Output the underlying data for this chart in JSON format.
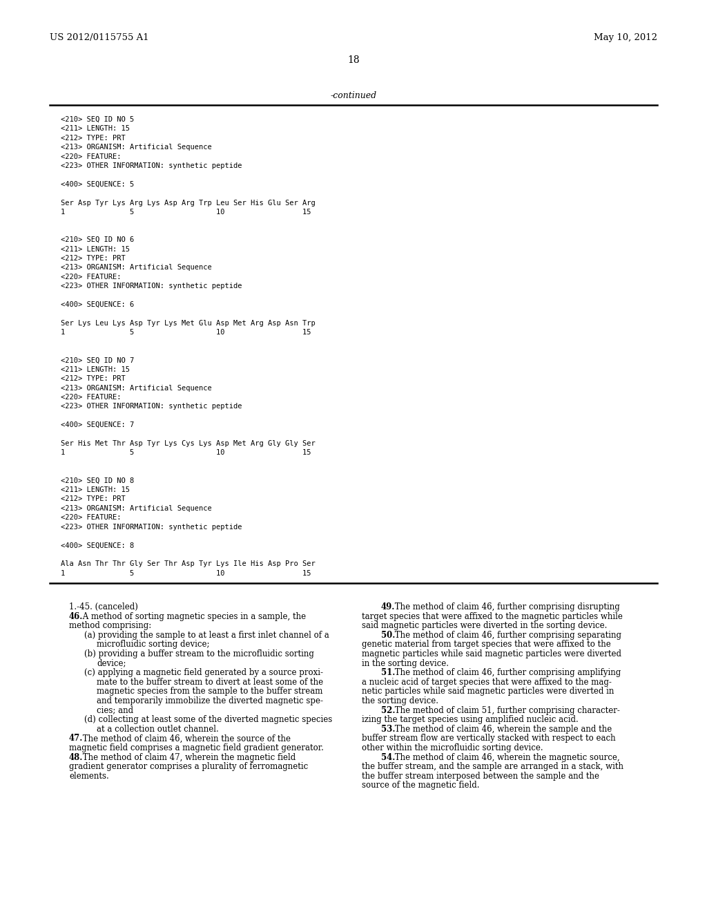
{
  "background_color": "#ffffff",
  "page_header_left": "US 2012/0115755 A1",
  "page_header_right": "May 10, 2012",
  "page_number": "18",
  "continued_label": "-continued",
  "monospace_lines": [
    "<210> SEQ ID NO 5",
    "<211> LENGTH: 15",
    "<212> TYPE: PRT",
    "<213> ORGANISM: Artificial Sequence",
    "<220> FEATURE:",
    "<223> OTHER INFORMATION: synthetic peptide",
    "",
    "<400> SEQUENCE: 5",
    "",
    "Ser Asp Tyr Lys Arg Lys Asp Arg Trp Leu Ser His Glu Ser Arg",
    "1               5                   10                  15",
    "",
    "",
    "<210> SEQ ID NO 6",
    "<211> LENGTH: 15",
    "<212> TYPE: PRT",
    "<213> ORGANISM: Artificial Sequence",
    "<220> FEATURE:",
    "<223> OTHER INFORMATION: synthetic peptide",
    "",
    "<400> SEQUENCE: 6",
    "",
    "Ser Lys Leu Lys Asp Tyr Lys Met Glu Asp Met Arg Asp Asn Trp",
    "1               5                   10                  15",
    "",
    "",
    "<210> SEQ ID NO 7",
    "<211> LENGTH: 15",
    "<212> TYPE: PRT",
    "<213> ORGANISM: Artificial Sequence",
    "<220> FEATURE:",
    "<223> OTHER INFORMATION: synthetic peptide",
    "",
    "<400> SEQUENCE: 7",
    "",
    "Ser His Met Thr Asp Tyr Lys Cys Lys Asp Met Arg Gly Gly Ser",
    "1               5                   10                  15",
    "",
    "",
    "<210> SEQ ID NO 8",
    "<211> LENGTH: 15",
    "<212> TYPE: PRT",
    "<213> ORGANISM: Artificial Sequence",
    "<220> FEATURE:",
    "<223> OTHER INFORMATION: synthetic peptide",
    "",
    "<400> SEQUENCE: 8",
    "",
    "Ala Asn Thr Thr Gly Ser Thr Asp Tyr Lys Ile His Asp Pro Ser",
    "1               5                   10                  15"
  ],
  "claims_col1_paragraphs": [
    {
      "lines": [
        "1.-​45. (canceled)"
      ],
      "indent_first": 28,
      "indent_rest": 28,
      "bold_prefix": ""
    },
    {
      "lines": [
        "46. A method of sorting magnetic species in a sample, the",
        "method comprising:"
      ],
      "indent_first": 28,
      "indent_rest": 28,
      "bold_prefix": "46."
    },
    {
      "lines": [
        "(a) providing the sample to at least a first inlet channel of a",
        "microfluidic sorting device;"
      ],
      "indent_first": 50,
      "indent_rest": 68,
      "bold_prefix": ""
    },
    {
      "lines": [
        "(b) providing a buffer stream to the microfluidic sorting",
        "device;"
      ],
      "indent_first": 50,
      "indent_rest": 68,
      "bold_prefix": ""
    },
    {
      "lines": [
        "(c) applying a magnetic field generated by a source proxi-",
        "mate to the buffer stream to divert at least some of the",
        "magnetic species from the sample to the buffer stream",
        "and temporarily immobilize the diverted magnetic spe-",
        "cies; and"
      ],
      "indent_first": 50,
      "indent_rest": 68,
      "bold_prefix": ""
    },
    {
      "lines": [
        "(d) collecting at least some of the diverted magnetic species",
        "at a collection outlet channel."
      ],
      "indent_first": 50,
      "indent_rest": 68,
      "bold_prefix": ""
    },
    {
      "lines": [
        "47. The method of claim 46, wherein the source of the",
        "magnetic field comprises a magnetic field gradient generator."
      ],
      "indent_first": 28,
      "indent_rest": 28,
      "bold_prefix": "47."
    },
    {
      "lines": [
        "48. The method of claim 47, wherein the magnetic field",
        "gradient generator comprises a plurality of ferromagnetic",
        "elements."
      ],
      "indent_first": 28,
      "indent_rest": 28,
      "bold_prefix": "48."
    }
  ],
  "claims_col2_paragraphs": [
    {
      "lines": [
        "49. The method of claim 46, further comprising disrupting",
        "target species that were affixed to the magnetic particles while",
        "said magnetic particles were diverted in the sorting device."
      ],
      "indent_first": 28,
      "indent_rest": 0,
      "bold_prefix": "49."
    },
    {
      "lines": [
        "50. The method of claim 46, further comprising separating",
        "genetic material from target species that were affixed to the",
        "magnetic particles while said magnetic particles were diverted",
        "in the sorting device."
      ],
      "indent_first": 28,
      "indent_rest": 0,
      "bold_prefix": "50."
    },
    {
      "lines": [
        "51. The method of claim 46, further comprising amplifying",
        "a nucleic acid of target species that were affixed to the mag-",
        "netic particles while said magnetic particles were diverted in",
        "the sorting device."
      ],
      "indent_first": 28,
      "indent_rest": 0,
      "bold_prefix": "51."
    },
    {
      "lines": [
        "52. The method of claim 51, further comprising character-",
        "izing the target species using amplified nucleic acid."
      ],
      "indent_first": 28,
      "indent_rest": 0,
      "bold_prefix": "52."
    },
    {
      "lines": [
        "53. The method of claim 46, wherein the sample and the",
        "buffer stream flow are vertically stacked with respect to each",
        "other within the microfluidic sorting device."
      ],
      "indent_first": 28,
      "indent_rest": 0,
      "bold_prefix": "53."
    },
    {
      "lines": [
        "54. The method of claim 46, wherein the magnetic source,",
        "the buffer stream, and the sample are arranged in a stack, with",
        "the buffer stream interposed between the sample and the",
        "source of the magnetic field."
      ],
      "indent_first": 28,
      "indent_rest": 0,
      "bold_prefix": "54."
    }
  ]
}
